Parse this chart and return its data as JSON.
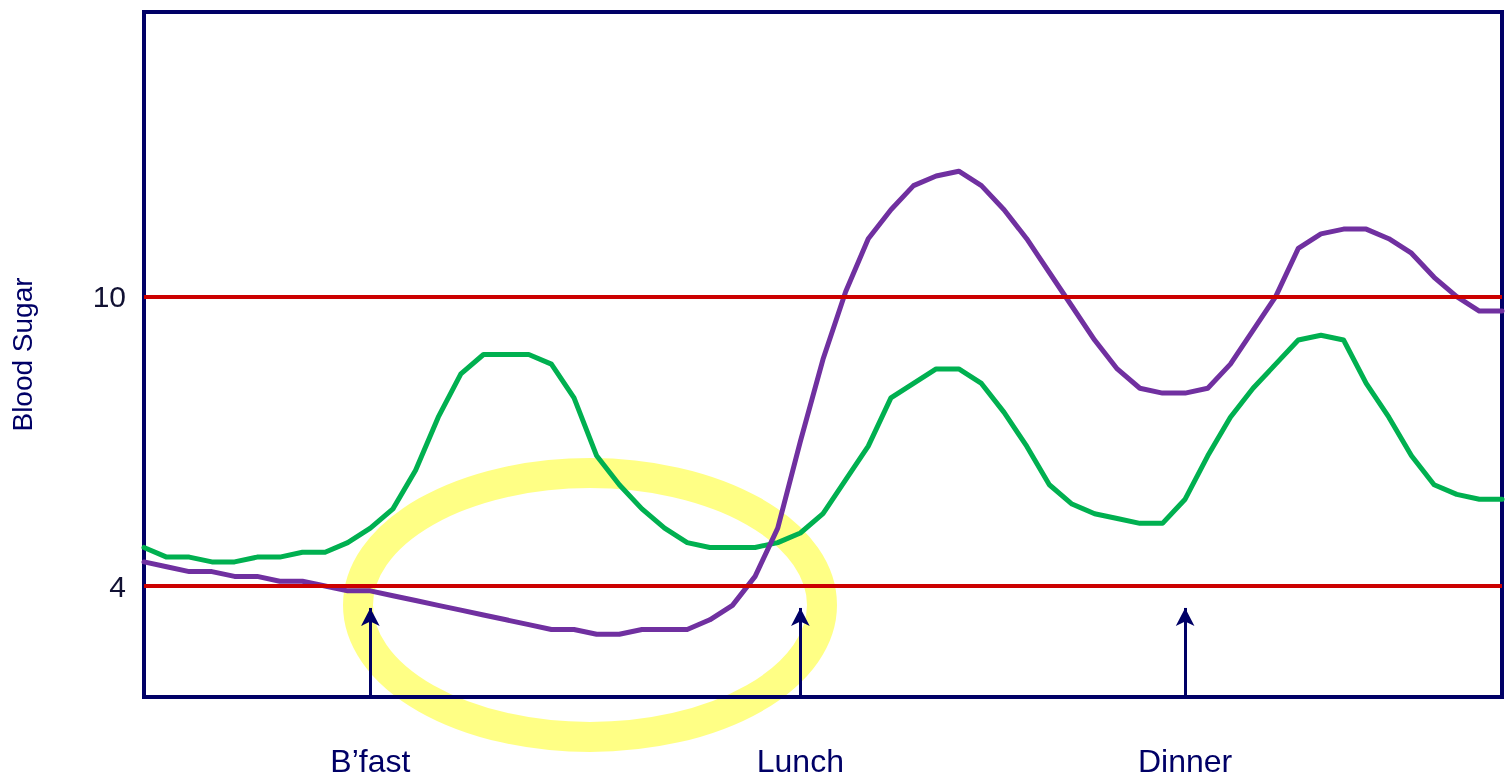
{
  "chart_data": {
    "type": "line",
    "ylabel": "Blood Sugar",
    "categories": [
      null,
      null,
      null,
      null,
      null,
      null,
      null,
      null,
      null,
      null,
      "B’fast",
      null,
      null,
      null,
      null,
      null,
      null,
      null,
      null,
      null,
      null,
      null,
      null,
      null,
      null,
      null,
      null,
      null,
      null,
      "Lunch",
      null,
      null,
      null,
      null,
      null,
      null,
      null,
      null,
      null,
      null,
      null,
      null,
      null,
      null,
      null,
      null,
      "Dinner",
      null,
      null,
      null,
      null,
      null,
      null,
      null,
      null,
      null,
      null,
      null,
      null,
      null,
      null
    ],
    "series": [
      {
        "color": "#00b050",
        "values": [
          4.8,
          4.6,
          4.6,
          4.5,
          4.5,
          4.6,
          4.6,
          4.7,
          4.7,
          4.9,
          5.2,
          5.6,
          6.4,
          7.5,
          8.4,
          8.8,
          8.8,
          8.8,
          8.6,
          7.9,
          6.7,
          6.1,
          5.6,
          5.2,
          4.9,
          4.8,
          4.8,
          4.8,
          4.9,
          5.1,
          5.5,
          6.2,
          6.9,
          7.9,
          8.2,
          8.5,
          8.5,
          8.2,
          7.6,
          6.9,
          6.1,
          5.7,
          5.5,
          5.4,
          5.3,
          5.3,
          5.8,
          6.7,
          7.5,
          8.1,
          8.6,
          9.1,
          9.2,
          9.1,
          8.2,
          7.5,
          6.7,
          6.1,
          5.9,
          5.8,
          5.8
        ]
      },
      {
        "color": "#7030a0",
        "values": [
          4.5,
          4.4,
          4.3,
          4.3,
          4.2,
          4.2,
          4.1,
          4.1,
          4.0,
          3.9,
          3.9,
          3.8,
          3.7,
          3.6,
          3.5,
          3.4,
          3.3,
          3.2,
          3.1,
          3.1,
          3.0,
          3.0,
          3.1,
          3.1,
          3.1,
          3.3,
          3.6,
          4.2,
          5.2,
          7.0,
          8.7,
          10.1,
          11.2,
          11.8,
          12.3,
          12.5,
          12.6,
          12.3,
          11.8,
          11.2,
          10.5,
          9.8,
          9.1,
          8.5,
          8.1,
          8.0,
          8.0,
          8.1,
          8.6,
          9.3,
          10.0,
          11.0,
          11.3,
          11.4,
          11.4,
          11.2,
          10.9,
          10.4,
          10.0,
          9.7,
          9.7
        ]
      }
    ],
    "ylim": [
      1.7,
      15.9
    ],
    "yticks": [
      4,
      10
    ],
    "ref_lines": [
      {
        "axis": "y",
        "value": 4,
        "color": "#cc0000"
      },
      {
        "axis": "y",
        "value": 10,
        "color": "#cc0000"
      }
    ],
    "marker": "none",
    "line_style": "solid"
  }
}
